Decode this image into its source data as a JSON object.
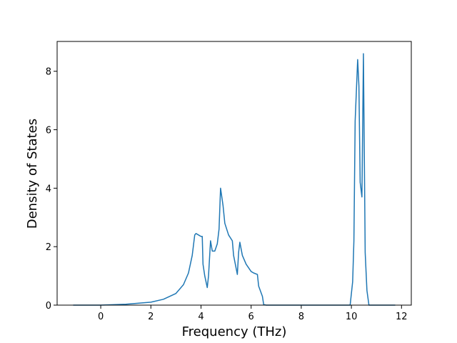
{
  "chart_data": {
    "type": "line",
    "x_label": "Frequency (THz)",
    "y_label": "Density of States",
    "x": [
      -1.1,
      0,
      1,
      2,
      2.5,
      3,
      3.3,
      3.5,
      3.65,
      3.75,
      3.8,
      3.9,
      4.0,
      4.05,
      4.08,
      4.15,
      4.25,
      4.3,
      4.38,
      4.45,
      4.55,
      4.65,
      4.72,
      4.78,
      4.88,
      4.95,
      5.1,
      5.25,
      5.3,
      5.45,
      5.5,
      5.55,
      5.65,
      5.8,
      6.0,
      6.1,
      6.25,
      6.3,
      6.45,
      6.5,
      6.6,
      9.95,
      10.05,
      10.1,
      10.15,
      10.25,
      10.3,
      10.35,
      10.42,
      10.48,
      10.55,
      10.62,
      10.7,
      11.75
    ],
    "series": [
      {
        "color": "#1f77b4",
        "values": [
          0,
          0,
          0.03,
          0.1,
          0.2,
          0.4,
          0.7,
          1.1,
          1.7,
          2.4,
          2.45,
          2.4,
          2.35,
          2.35,
          1.4,
          1.0,
          0.6,
          1.0,
          2.2,
          1.85,
          1.85,
          2.1,
          2.6,
          4.0,
          3.4,
          2.8,
          2.4,
          2.2,
          1.7,
          1.05,
          1.8,
          2.15,
          1.7,
          1.4,
          1.15,
          1.1,
          1.05,
          0.65,
          0.3,
          0.02,
          0,
          0,
          0.8,
          2.2,
          6.3,
          8.4,
          7.5,
          4.2,
          3.7,
          8.6,
          1.8,
          0.5,
          0,
          0
        ]
      }
    ],
    "xlim": [
      -1.74,
      12.39
    ],
    "ylim": [
      0,
      9.02
    ],
    "xticks": [
      0,
      2,
      4,
      6,
      8,
      10,
      12
    ],
    "yticks": [
      0,
      2,
      4,
      6,
      8
    ]
  }
}
